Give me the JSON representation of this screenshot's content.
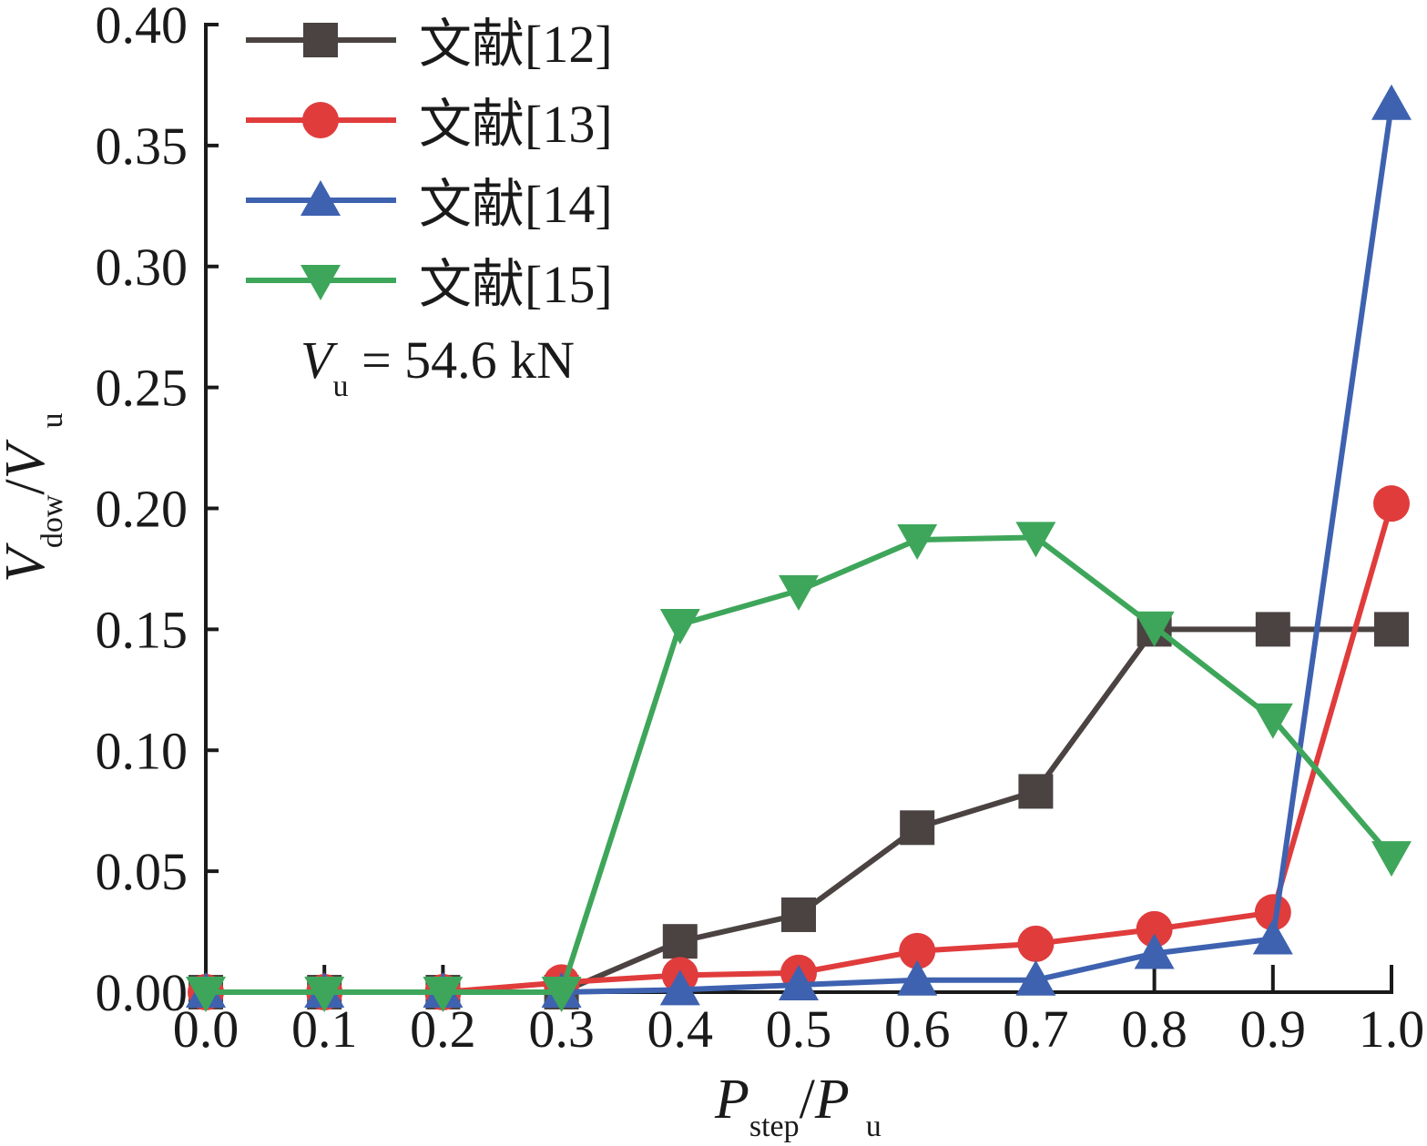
{
  "chart_data": {
    "type": "line",
    "title": "",
    "xlabel": {
      "main": "P",
      "sub": "step",
      "sep": "/",
      "main2": "P",
      "sub2": "u"
    },
    "ylabel": {
      "main": "V",
      "sub": "dow",
      "sep": "/",
      "main2": "V",
      "sub2": "u"
    },
    "xlim": [
      0.0,
      1.0
    ],
    "ylim": [
      0.0,
      0.4
    ],
    "x": [
      0.0,
      0.1,
      0.2,
      0.3,
      0.4,
      0.5,
      0.6,
      0.7,
      0.8,
      0.9,
      1.0
    ],
    "xticks": [
      "0.0",
      "0.1",
      "0.2",
      "0.3",
      "0.4",
      "0.5",
      "0.6",
      "0.7",
      "0.8",
      "0.9",
      "1.0"
    ],
    "yticks": [
      "0.00",
      "0.05",
      "0.10",
      "0.15",
      "0.20",
      "0.25",
      "0.30",
      "0.35",
      "0.40"
    ],
    "grid": false,
    "legend_position": "top-left",
    "annotation": {
      "main": "V",
      "sub": "u",
      "text": " = 54.6 kN"
    },
    "series": [
      {
        "name": "文献[12]",
        "color": "#4a4341",
        "marker": "square",
        "values": [
          0,
          0,
          0,
          0,
          0.021,
          0.032,
          0.068,
          0.083,
          0.15,
          0.15,
          0.15
        ]
      },
      {
        "name": "文献[13]",
        "color": "#e03c3c",
        "marker": "circle",
        "values": [
          0,
          0,
          0,
          0.004,
          0.007,
          0.008,
          0.017,
          0.02,
          0.026,
          0.033,
          0.202
        ]
      },
      {
        "name": "文献[14]",
        "color": "#3e62b0",
        "marker": "triangle-up",
        "values": [
          0,
          0,
          0,
          0,
          0.001,
          0.003,
          0.005,
          0.005,
          0.016,
          0.022,
          0.367
        ]
      },
      {
        "name": "文献[15]",
        "color": "#3ea65a",
        "marker": "triangle-down",
        "values": [
          0,
          0,
          0,
          0,
          0.152,
          0.166,
          0.187,
          0.188,
          0.151,
          0.113,
          0.056
        ]
      }
    ]
  }
}
